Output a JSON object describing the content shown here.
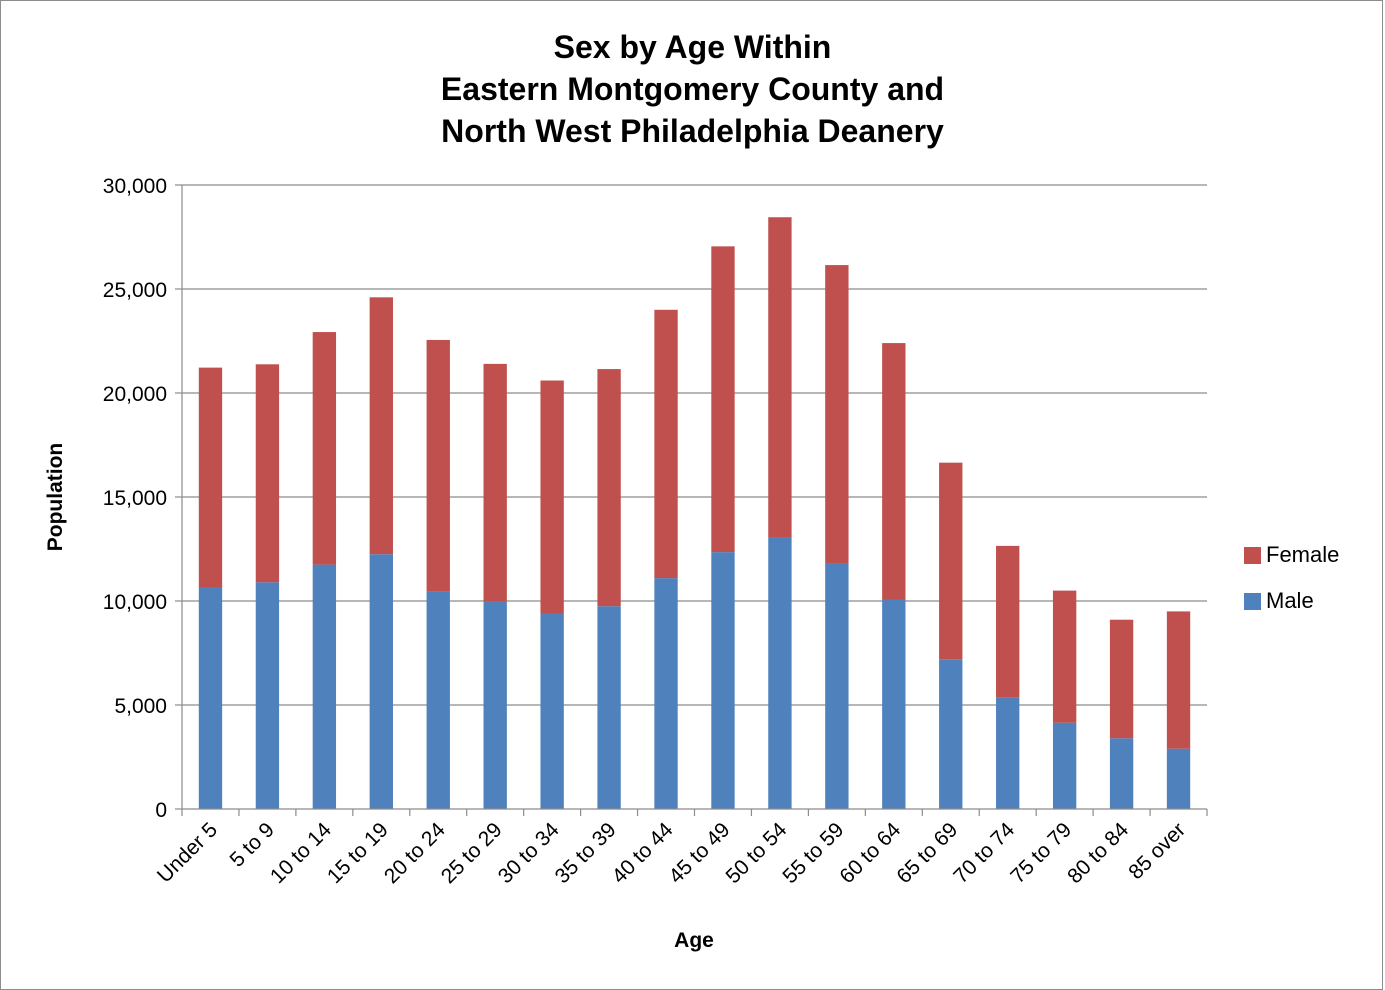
{
  "chart_data": {
    "type": "bar",
    "stacked": true,
    "title": [
      "Sex by Age Within",
      "Eastern Montgomery County and",
      "North West Philadelphia Deanery"
    ],
    "xlabel": "Age",
    "ylabel": "Population",
    "ylim": [
      0,
      30000
    ],
    "yticks": [
      0,
      5000,
      10000,
      15000,
      20000,
      25000,
      30000
    ],
    "ytick_labels": [
      "0",
      "5,000",
      "10,000",
      "15,000",
      "20,000",
      "25,000",
      "30,000"
    ],
    "grid": true,
    "legend": "right",
    "categories": [
      "Under 5",
      "5 to 9",
      "10 to 14",
      "15 to 19",
      "20 to 24",
      "25 to 29",
      "30 to 34",
      "35 to 39",
      "40 to 44",
      "45 to 49",
      "50 to 54",
      "55 to 59",
      "60 to 64",
      "65 to 69",
      "70 to 74",
      "75 to 79",
      "80 to 84",
      "85 over"
    ],
    "series": [
      {
        "name": "Male",
        "color": "#4f81bd",
        "values": [
          10650,
          10900,
          11750,
          12250,
          10450,
          10000,
          9400,
          9750,
          11100,
          12350,
          13050,
          11800,
          10050,
          7200,
          5350,
          4150,
          3400,
          2900
        ]
      },
      {
        "name": "Female",
        "color": "#c0504d",
        "values": [
          10570,
          10480,
          11180,
          12350,
          12100,
          11400,
          11200,
          11400,
          12900,
          14700,
          15400,
          14350,
          12350,
          9450,
          7300,
          6350,
          5700,
          6600
        ]
      }
    ]
  }
}
